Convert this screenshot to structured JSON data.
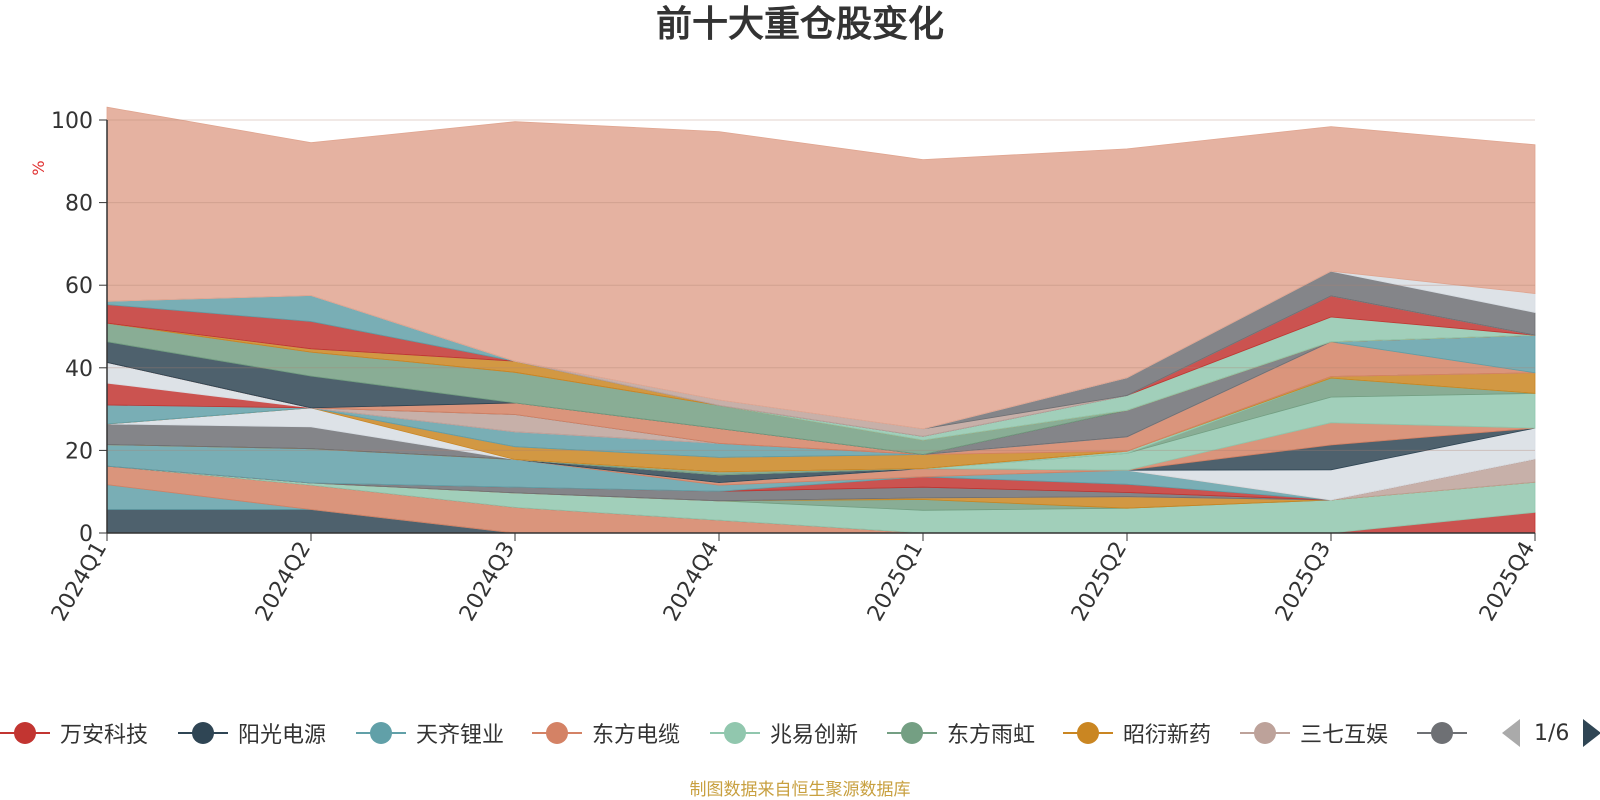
{
  "title": "前十大重仓股变化",
  "source_note": "制图数据来自恒生聚源数据库",
  "pager": {
    "text": "1/6"
  },
  "legend": [
    {
      "label": "万安科技",
      "color": "#c23531"
    },
    {
      "label": "阳光电源",
      "color": "#2f4554"
    },
    {
      "label": "天齐锂业",
      "color": "#61a0a8"
    },
    {
      "label": "东方电缆",
      "color": "#d48265"
    },
    {
      "label": "兆易创新",
      "color": "#91c7ae"
    },
    {
      "label": "东方雨虹",
      "color": "#749f83"
    },
    {
      "label": "昭衍新药",
      "color": "#ca8622"
    },
    {
      "label": "三七互娱",
      "color": "#bda29a"
    },
    {
      "label": "",
      "color": "#6e7074"
    }
  ],
  "chart_data": {
    "type": "area",
    "stacked": true,
    "categories": [
      "2024Q1",
      "2024Q2",
      "2024Q3",
      "2024Q4",
      "2025Q1",
      "2025Q2",
      "2025Q3",
      "2025Q4"
    ],
    "ylabel": "%",
    "ylim": [
      0,
      100
    ],
    "yticks": [
      0,
      20,
      40,
      60,
      80,
      100
    ],
    "grid": true,
    "series": [
      {
        "color": "#2f4554",
        "values": [
          5.7,
          5.7,
          0,
          0,
          0,
          0,
          0,
          0
        ]
      },
      {
        "color": "#61a0a8",
        "values": [
          6.0,
          0,
          0,
          0,
          0,
          0,
          0,
          0
        ]
      },
      {
        "color": "#d48265",
        "values": [
          4.5,
          5.9,
          6.2,
          3.1,
          0,
          0,
          0,
          0
        ]
      },
      {
        "color": "#c23531",
        "values": [
          0,
          0,
          0,
          0,
          0,
          0,
          0,
          5.0
        ]
      },
      {
        "color": "#91c7ae",
        "values": [
          0,
          0.5,
          3.5,
          4.7,
          5.5,
          6.0,
          8.0,
          7.3
        ]
      },
      {
        "color": "#749f83",
        "values": [
          0,
          0,
          0,
          0,
          2.6,
          0,
          0,
          0
        ]
      },
      {
        "color": "#ca8622",
        "values": [
          0,
          0,
          0,
          0,
          0.4,
          2.8,
          0,
          0
        ]
      },
      {
        "color": "#bda29a",
        "values": [
          0,
          0,
          0,
          0,
          0,
          0,
          0,
          5.6
        ]
      },
      {
        "color": "#6e7074",
        "values": [
          0,
          0,
          1.4,
          2.3,
          2.6,
          1.0,
          0,
          0
        ]
      },
      {
        "color": "#c23531",
        "values": [
          0,
          0,
          0,
          0,
          2.5,
          2.0,
          0,
          0
        ]
      },
      {
        "color": "#61a0a8",
        "values": [
          5.2,
          8.3,
          6.7,
          1.5,
          0,
          3.4,
          0,
          0
        ]
      },
      {
        "color": "#d48265",
        "values": [
          0,
          0,
          0,
          0.6,
          2.0,
          0,
          0,
          0
        ]
      },
      {
        "color": "#d7dde3",
        "values": [
          0,
          0,
          0,
          0,
          0,
          0,
          7.3,
          7.5
        ]
      },
      {
        "color": "#2f4554",
        "values": [
          0,
          0,
          0,
          1.9,
          0,
          0,
          6.0,
          0
        ]
      },
      {
        "color": "#d48265",
        "values": [
          0,
          0,
          0,
          0,
          0,
          0,
          5.4,
          0
        ]
      },
      {
        "color": "#91c7ae",
        "values": [
          0,
          0,
          0,
          0,
          0,
          4.1,
          6.2,
          8.4
        ]
      },
      {
        "color": "#749f83",
        "values": [
          0,
          0,
          0,
          0.7,
          0,
          0,
          4.6,
          0
        ]
      },
      {
        "color": "#91c7ae",
        "values": [
          0,
          0,
          0,
          0,
          0,
          0.5,
          0,
          0
        ]
      },
      {
        "color": "#ca8622",
        "values": [
          0,
          0,
          0,
          0,
          0,
          0,
          0.4,
          5.0
        ]
      },
      {
        "color": "#6e7074",
        "values": [
          5.0,
          5.3,
          0,
          0,
          0,
          0,
          0,
          0
        ]
      },
      {
        "color": "#d7dde3",
        "values": [
          0,
          4.6,
          0,
          0,
          0,
          0,
          0,
          0
        ]
      },
      {
        "color": "#ca8622",
        "values": [
          0,
          0,
          3.1,
          3.5,
          3.4,
          0,
          0,
          0
        ]
      },
      {
        "color": "#d48265",
        "values": [
          0,
          0,
          0,
          0,
          0,
          3.5,
          8.4,
          0
        ]
      },
      {
        "color": "#61a0a8",
        "values": [
          4.6,
          0,
          3.6,
          3.4,
          0,
          0,
          0,
          9.1
        ]
      },
      {
        "color": "#c23531",
        "values": [
          5.3,
          0,
          0,
          0,
          0,
          0,
          0,
          0
        ]
      },
      {
        "color": "#d7dde3",
        "values": [
          5.0,
          0,
          0,
          0,
          0,
          0,
          0,
          0
        ]
      },
      {
        "color": "#bda29a",
        "values": [
          0,
          0,
          4.2,
          0,
          0,
          0,
          0,
          0
        ]
      },
      {
        "color": "#6e7074",
        "values": [
          0,
          0,
          0,
          0,
          0,
          6.4,
          0,
          0
        ]
      },
      {
        "color": "#d48265",
        "values": [
          0,
          0,
          2.8,
          3.6,
          0,
          0,
          0,
          0
        ]
      },
      {
        "color": "#2f4554",
        "values": [
          5.0,
          7.7,
          0,
          0,
          0,
          0,
          0,
          0
        ]
      },
      {
        "color": "#749f83",
        "values": [
          4.5,
          5.8,
          7.4,
          5.6,
          3.5,
          0,
          0,
          0
        ]
      },
      {
        "color": "#d48265",
        "values": [
          0,
          0,
          0,
          0,
          0,
          0,
          0,
          0
        ]
      },
      {
        "color": "#ca8622",
        "values": [
          0,
          0.8,
          2.7,
          0,
          0,
          0,
          0,
          0
        ]
      },
      {
        "color": "#91c7ae",
        "values": [
          0,
          0,
          0,
          0,
          0.9,
          3.6,
          6.0,
          0
        ]
      },
      {
        "color": "#c23531",
        "values": [
          4.5,
          6.6,
          0,
          0,
          0,
          0,
          5.1,
          0
        ]
      },
      {
        "color": "#61a0a8",
        "values": [
          0.8,
          6.3,
          0,
          0,
          0,
          0,
          0,
          0
        ]
      },
      {
        "color": "#bda29a",
        "values": [
          0,
          0,
          0,
          1.3,
          1.8,
          0,
          0,
          0
        ]
      },
      {
        "color": "#6e7074",
        "values": [
          0,
          0,
          0,
          0,
          0,
          4.3,
          6.0,
          5.5
        ]
      },
      {
        "color": "#d7dde3",
        "values": [
          0,
          0,
          0,
          0,
          0,
          0,
          0,
          4.6
        ]
      },
      {
        "color": "#e0a590",
        "values": [
          47.0,
          37.0,
          58.0,
          65.0,
          65.2,
          55.4,
          35.0,
          36.0
        ]
      }
    ]
  }
}
